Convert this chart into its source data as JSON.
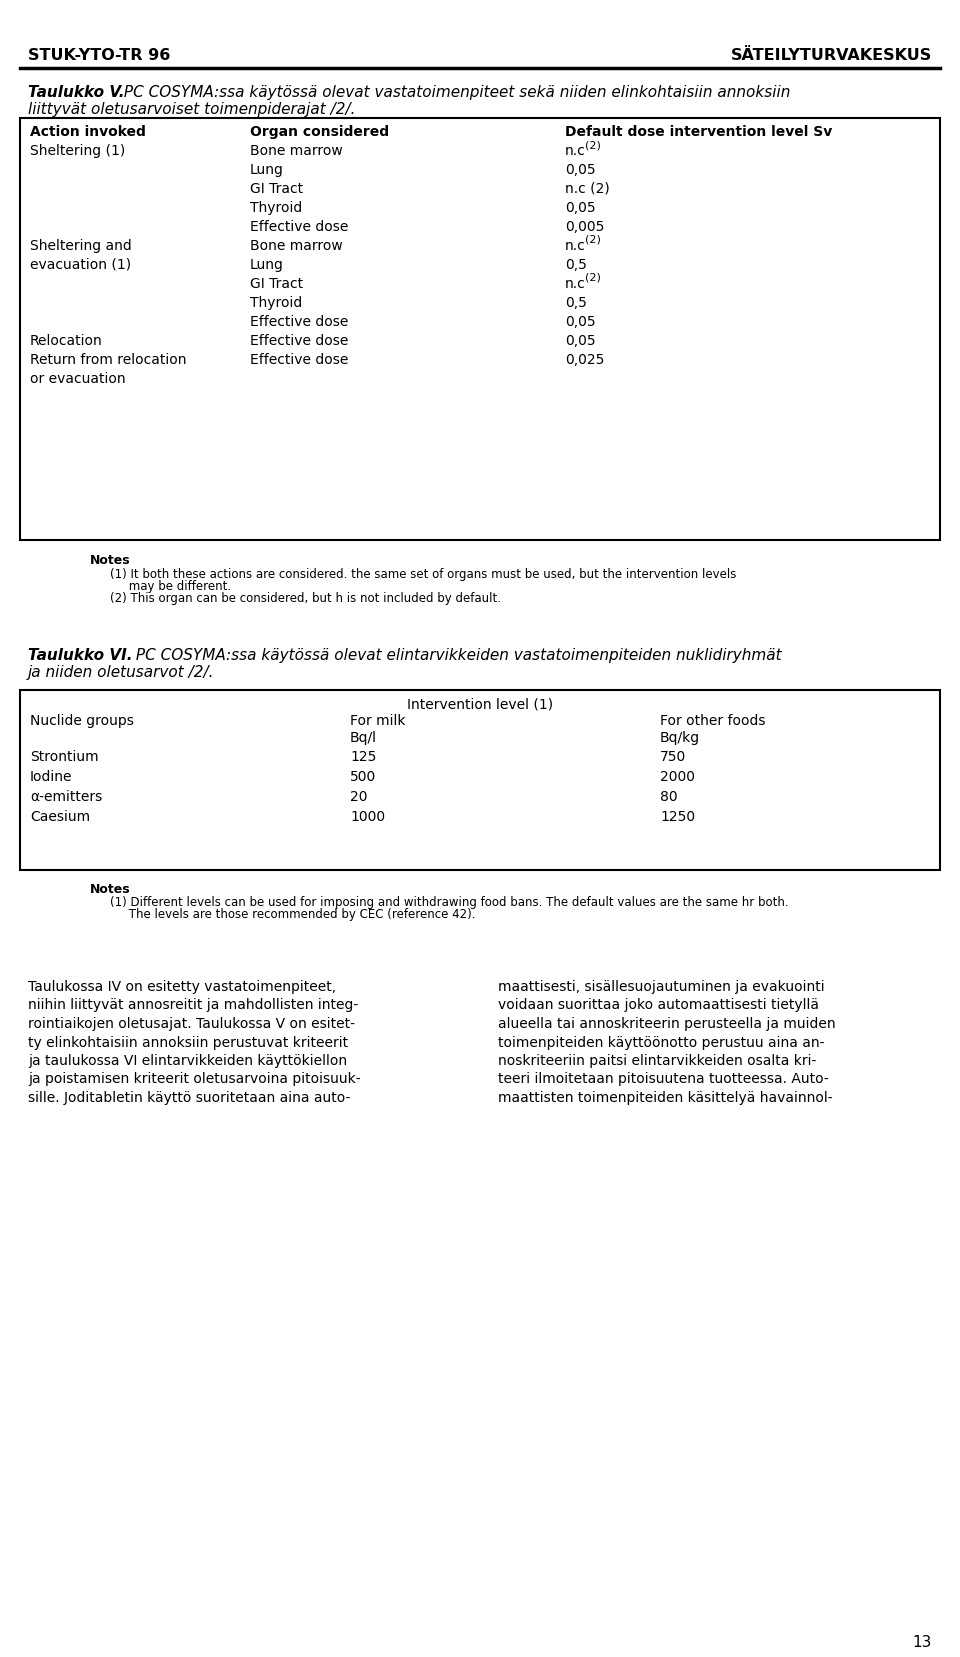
{
  "header_left": "STUK-YTO-TR 96",
  "header_right": "SÄTEILYTURVAKESKUS",
  "title1_bold": "Taulukko V.",
  "title1_rest": " PC COSYMA:ssa käytössä olevat vastatoimenpiteet sekä niiden elinkohtaisiin annoksiin",
  "title1_line2": "liittyvät oletusarvoiset toimenpiderajat /2/.",
  "table1_col_headers": [
    "Action invoked",
    "Organ considered",
    "Default dose intervention level Sv"
  ],
  "table1_rows": [
    [
      "Sheltering (1)",
      "Bone marrow",
      "n.c",
      "(2)"
    ],
    [
      "",
      "Lung",
      "0,05",
      ""
    ],
    [
      "",
      "GI Tract",
      "n.c (2)",
      ""
    ],
    [
      "",
      "Thyroid",
      "0,05",
      ""
    ],
    [
      "",
      "Effective dose",
      "0,005",
      ""
    ],
    [
      "Sheltering and",
      "Bone marrow",
      "n.c",
      "(2)"
    ],
    [
      "evacuation (1)",
      "Lung",
      "0,5",
      ""
    ],
    [
      "",
      "GI Tract",
      "n.c",
      "(2)"
    ],
    [
      "",
      "Thyroid",
      "0,5",
      ""
    ],
    [
      "",
      "Effective dose",
      "0,05",
      ""
    ],
    [
      "Relocation",
      "Effective dose",
      "0,05",
      ""
    ],
    [
      "Return from relocation",
      "Effective dose",
      "0,025",
      ""
    ],
    [
      "or evacuation",
      "",
      "",
      ""
    ]
  ],
  "notes1_title": "Notes",
  "notes1_line1": "(1) It both these actions are considered. the same set of organs must be used, but the intervention levels",
  "notes1_line2": "     may be different.",
  "notes1_line3": "(2) This organ can be considered, but h is not included by default.",
  "title2_bold": "Taulukko VI.",
  "title2_rest": " PC COSYMA:ssa käytössä olevat elintarvikkeiden vastatoimenpiteiden nuklidiryhmät",
  "title2_line2": "ja niiden oletusarvot /2/.",
  "table2_header_center": "Intervention level (1)",
  "table2_rows": [
    [
      "Strontium",
      "125",
      "750"
    ],
    [
      "Iodine",
      "500",
      "2000"
    ],
    [
      "α-emitters",
      "20",
      "80"
    ],
    [
      "Caesium",
      "1000",
      "1250"
    ]
  ],
  "notes2_title": "Notes",
  "notes2_line1": "(1) Different levels can be used for imposing and withdrawing food bans. The default values are the same hr both.",
  "notes2_line2": "     The levels are those recommended by CEC (reference 42).",
  "body_col1": [
    "Taulukossa IV on esitetty vastatoimenpiteet,",
    "niihin liittyvät annosreitit ja mahdollisten integ-",
    "rointiaikojen oletusajat. Taulukossa V on esitet-",
    "ty elinkohtaisiin annoksiin perustuvat kriteerit",
    "ja taulukossa VI elintarvikkeiden käyttökiellon",
    "ja poistamisen kriteerit oletusarvoina pitoisuuk-",
    "sille. Joditabletin käyttö suoritetaan aina auto-"
  ],
  "body_col2": [
    "maattisesti, sisällesuojautuminen ja evakuointi",
    "voidaan suorittaa joko automaattisesti tietyllä",
    "alueella tai annoskriteerin perusteella ja muiden",
    "toimenpiteiden käyttöönotto perustuu aina an-",
    "noskriteeriin paitsi elintarvikkeiden osalta kri-",
    "teeri ilmoitetaan pitoisuutena tuotteessa. Auto-",
    "maattisten toimenpiteiden käsittelyä havainnol-"
  ],
  "page_number": "13",
  "bg_color": "#ffffff"
}
